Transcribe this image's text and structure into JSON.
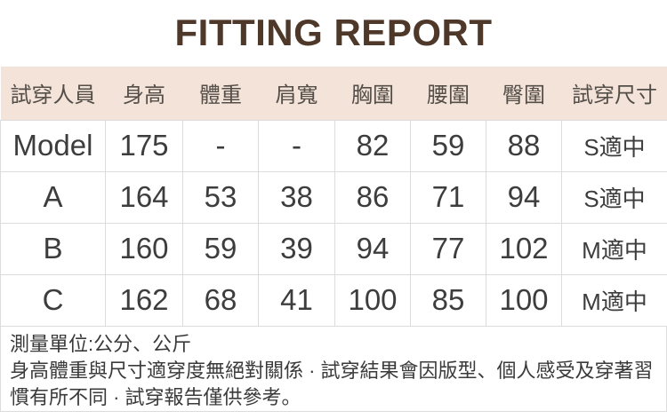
{
  "title": "FITTING REPORT",
  "colors": {
    "title_text": "#4e382a",
    "header_background": "#f3e3d8",
    "header_text": "#544e49",
    "cell_text": "#3d3d3d",
    "border": "#dcdcdc"
  },
  "table": {
    "headers": [
      "試穿人員",
      "身高",
      "體重",
      "肩寬",
      "胸圍",
      "腰圍",
      "臀圍",
      "試穿尺寸"
    ],
    "rows": [
      {
        "cells": [
          "Model",
          "175",
          "-",
          "-",
          "82",
          "59",
          "88",
          "S適中"
        ]
      },
      {
        "cells": [
          "A",
          "164",
          "53",
          "38",
          "86",
          "71",
          "94",
          "S適中"
        ]
      },
      {
        "cells": [
          "B",
          "160",
          "59",
          "39",
          "94",
          "77",
          "102",
          "M適中"
        ]
      },
      {
        "cells": [
          "C",
          "162",
          "68",
          "41",
          "100",
          "85",
          "100",
          "M適中"
        ]
      }
    ]
  },
  "notes": {
    "unit_line": "測量單位:公分、公斤",
    "disclaimer": "身高體重與尺寸適穿度無絕對關係 · 試穿結果會因版型、個人感受及穿著習慣有所不同 · 試穿報告僅供參考。"
  }
}
